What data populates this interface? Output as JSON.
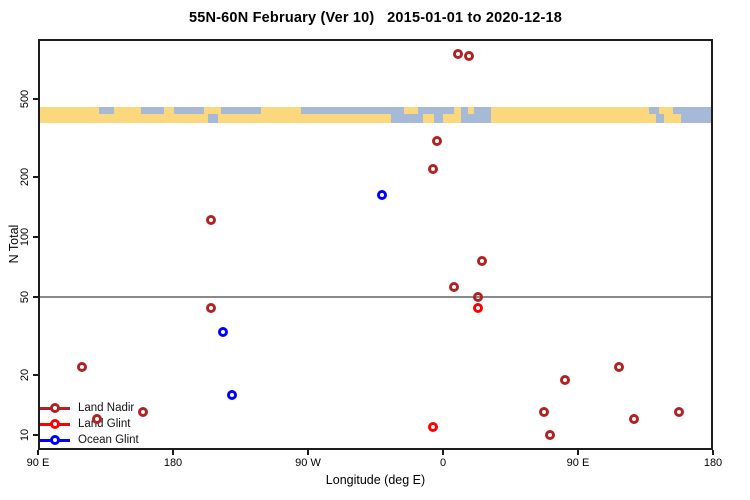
{
  "title": "55N-60N February (Ver 10)   2015-01-01 to 2020-12-18",
  "colors": {
    "land_nadir": "#B22222",
    "land_glint": "#FF0000",
    "ocean_glint": "#0000FF",
    "map_land": "#FBD77E",
    "map_ocean": "#A6BAD8",
    "reference_line": "#8a8a8a",
    "axis": "#1c1c1c"
  },
  "legend": {
    "items": [
      {
        "label": "Land Nadir",
        "color_key": "land_nadir"
      },
      {
        "label": "Land Glint",
        "color_key": "land_glint"
      },
      {
        "label": "Ocean Glint",
        "color_key": "ocean_glint"
      }
    ]
  },
  "chart_data": {
    "type": "scatter",
    "title": "55N-60N February (Ver 10)   2015-01-01 to 2020-12-18",
    "xlabel": "Longitude (deg E)",
    "ylabel": "N Total",
    "grid": false,
    "legend_position": "bottom-left",
    "x_axis": {
      "scale": "linear",
      "domain": [
        90,
        540
      ],
      "note": "wrapped longitude axis: 90E to 180 eastward around the globe 1.25 times",
      "ticks": [
        {
          "value": 90,
          "label": "90 E"
        },
        {
          "value": 180,
          "label": "180"
        },
        {
          "value": 270,
          "label": "90 W"
        },
        {
          "value": 360,
          "label": "0"
        },
        {
          "value": 450,
          "label": "90 E"
        },
        {
          "value": 540,
          "label": "180"
        }
      ]
    },
    "y_axis": {
      "scale": "log",
      "domain": [
        8.4,
        1000
      ],
      "ticks": [
        {
          "value": 10,
          "label": "10"
        },
        {
          "value": 20,
          "label": "20"
        },
        {
          "value": 50,
          "label": "50"
        },
        {
          "value": 100,
          "label": "100"
        },
        {
          "value": 200,
          "label": "200"
        },
        {
          "value": 500,
          "label": "500"
        }
      ]
    },
    "reference_line_y": 50,
    "series": [
      {
        "name": "Land Nadir",
        "color_key": "land_nadir",
        "points": [
          [
            370,
            840
          ],
          [
            377,
            820
          ],
          [
            356,
            305
          ],
          [
            353,
            220
          ],
          [
            205,
            122
          ],
          [
            386,
            76
          ],
          [
            367,
            56
          ],
          [
            383,
            50
          ],
          [
            205,
            44
          ],
          [
            119,
            22
          ],
          [
            477,
            22
          ],
          [
            441,
            19
          ],
          [
            160,
            13
          ],
          [
            129,
            12
          ],
          [
            427,
            13
          ],
          [
            517,
            13
          ],
          [
            487,
            12
          ],
          [
            431,
            10
          ]
        ]
      },
      {
        "name": "Land Glint",
        "color_key": "land_glint",
        "points": [
          [
            383,
            44
          ],
          [
            353,
            11
          ]
        ]
      },
      {
        "name": "Ocean Glint",
        "color_key": "ocean_glint",
        "points": [
          [
            319,
            163
          ],
          [
            213,
            33
          ],
          [
            219,
            16
          ]
        ]
      }
    ],
    "map_strip": {
      "description": "land/ocean mask band for 55N-60N drawn across the plot",
      "y_top_value": 455,
      "y_bottom_value": 380,
      "rows": [
        {
          "name": "north-half",
          "segments": [
            [
              0.0,
              0.09,
              "land"
            ],
            [
              0.09,
              0.112,
              "ocean"
            ],
            [
              0.112,
              0.152,
              "land"
            ],
            [
              0.152,
              0.187,
              "ocean"
            ],
            [
              0.187,
              0.201,
              "land"
            ],
            [
              0.201,
              0.246,
              "ocean"
            ],
            [
              0.246,
              0.271,
              "land"
            ],
            [
              0.271,
              0.33,
              "ocean"
            ],
            [
              0.33,
              0.39,
              "land"
            ],
            [
              0.39,
              0.542,
              "ocean"
            ],
            [
              0.542,
              0.563,
              "land"
            ],
            [
              0.563,
              0.616,
              "ocean"
            ],
            [
              0.616,
              0.627,
              "land"
            ],
            [
              0.627,
              0.637,
              "ocean"
            ],
            [
              0.637,
              0.646,
              "land"
            ],
            [
              0.646,
              0.671,
              "ocean"
            ],
            [
              0.671,
              0.905,
              "land"
            ],
            [
              0.905,
              0.92,
              "ocean"
            ],
            [
              0.92,
              0.941,
              "land"
            ],
            [
              0.941,
              1.0,
              "ocean"
            ]
          ]
        },
        {
          "name": "south-half",
          "segments": [
            [
              0.0,
              0.252,
              "land"
            ],
            [
              0.252,
              0.267,
              "ocean"
            ],
            [
              0.267,
              0.523,
              "land"
            ],
            [
              0.523,
              0.57,
              "ocean"
            ],
            [
              0.57,
              0.587,
              "land"
            ],
            [
              0.587,
              0.6,
              "ocean"
            ],
            [
              0.6,
              0.627,
              "land"
            ],
            [
              0.627,
              0.671,
              "ocean"
            ],
            [
              0.671,
              0.916,
              "land"
            ],
            [
              0.916,
              0.927,
              "ocean"
            ],
            [
              0.927,
              0.952,
              "land"
            ],
            [
              0.952,
              1.0,
              "ocean"
            ]
          ]
        }
      ]
    }
  }
}
